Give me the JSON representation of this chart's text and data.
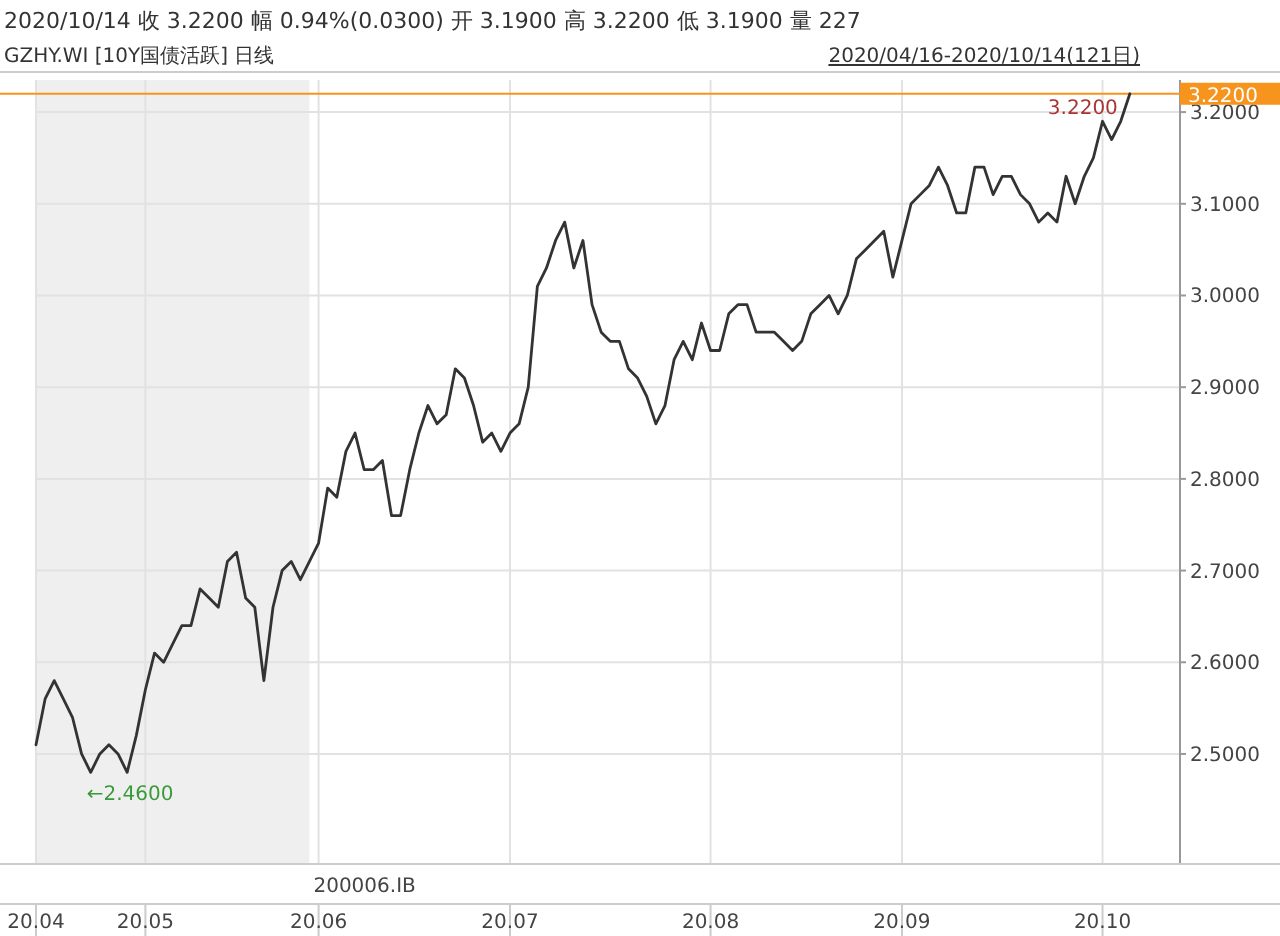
{
  "chart_data": {
    "type": "line",
    "title": "2020/10/14 收 3.2200 幅 0.94%(0.0300) 开 3.1900 高 3.2200 低 3.1900 量 227",
    "subtitle": "GZHY.WI [10Y国债活跃] 日线",
    "annotations": [
      "2020/04/16-2020/10/14(121日)",
      "←2.4600",
      "200006.IB",
      {
        "text": "3.2200",
        "y": 3.22
      }
    ],
    "categories": [
      "20.04",
      null,
      null,
      null,
      null,
      null,
      null,
      null,
      null,
      null,
      null,
      null,
      "20.05",
      null,
      null,
      null,
      null,
      null,
      null,
      null,
      null,
      null,
      null,
      null,
      null,
      null,
      null,
      null,
      null,
      null,
      null,
      "20.06",
      null,
      null,
      null,
      null,
      null,
      null,
      null,
      null,
      null,
      null,
      null,
      null,
      null,
      null,
      null,
      null,
      null,
      null,
      null,
      null,
      "20.07",
      null,
      null,
      null,
      null,
      null,
      null,
      null,
      null,
      null,
      null,
      null,
      null,
      null,
      null,
      null,
      null,
      null,
      null,
      null,
      null,
      null,
      "20.08",
      null,
      null,
      null,
      null,
      null,
      null,
      null,
      null,
      null,
      null,
      null,
      null,
      null,
      null,
      null,
      null,
      null,
      null,
      null,
      null,
      "20.09",
      null,
      null,
      null,
      null,
      null,
      null,
      null,
      null,
      null,
      null,
      null,
      null,
      null,
      null,
      null,
      null,
      null,
      null,
      null,
      null,
      null,
      "20.10",
      null,
      null,
      null
    ],
    "series": [
      {
        "color": "#333333",
        "values": [
          2.51,
          2.56,
          2.58,
          2.56,
          2.54,
          2.5,
          2.48,
          2.5,
          2.51,
          2.5,
          2.48,
          2.52,
          2.57,
          2.61,
          2.6,
          2.62,
          2.64,
          2.64,
          2.68,
          2.67,
          2.66,
          2.71,
          2.72,
          2.67,
          2.66,
          2.58,
          2.66,
          2.7,
          2.71,
          2.69,
          2.71,
          2.73,
          2.79,
          2.78,
          2.83,
          2.85,
          2.81,
          2.81,
          2.82,
          2.76,
          2.76,
          2.81,
          2.85,
          2.88,
          2.86,
          2.87,
          2.92,
          2.91,
          2.88,
          2.84,
          2.85,
          2.83,
          2.85,
          2.86,
          2.9,
          3.01,
          3.03,
          3.06,
          3.08,
          3.03,
          3.06,
          2.99,
          2.96,
          2.95,
          2.95,
          2.92,
          2.91,
          2.89,
          2.86,
          2.88,
          2.93,
          2.95,
          2.93,
          2.97,
          2.94,
          2.94,
          2.98,
          2.99,
          2.99,
          2.96,
          2.96,
          2.96,
          2.95,
          2.94,
          2.95,
          2.98,
          2.99,
          3.0,
          2.98,
          3.0,
          3.04,
          3.05,
          3.06,
          3.07,
          3.02,
          3.06,
          3.1,
          3.11,
          3.12,
          3.14,
          3.12,
          3.09,
          3.09,
          3.14,
          3.14,
          3.11,
          3.13,
          3.13,
          3.11,
          3.1,
          3.08,
          3.09,
          3.08,
          3.13,
          3.1,
          3.13,
          3.15,
          3.19,
          3.17,
          3.19,
          3.22
        ]
      }
    ],
    "ylim": [
      2.38,
      3.235
    ],
    "yticks": [
      {
        "value": 2.5,
        "label": "2.5000"
      },
      {
        "value": 2.6,
        "label": "2.6000"
      },
      {
        "value": 2.7,
        "label": "2.7000"
      },
      {
        "value": 2.8,
        "label": "2.8000"
      },
      {
        "value": 2.9,
        "label": "2.9000"
      },
      {
        "value": 3.0,
        "label": "3.0000"
      },
      {
        "value": 3.1,
        "label": "3.1000"
      },
      {
        "value": 3.2,
        "label": "3.2000"
      }
    ],
    "ref_lines": [
      {
        "axis": "y",
        "value": 3.22,
        "label": "3.2200",
        "color": "#f7941d"
      }
    ],
    "grid": true,
    "marker": "none",
    "line_style": "solid"
  }
}
